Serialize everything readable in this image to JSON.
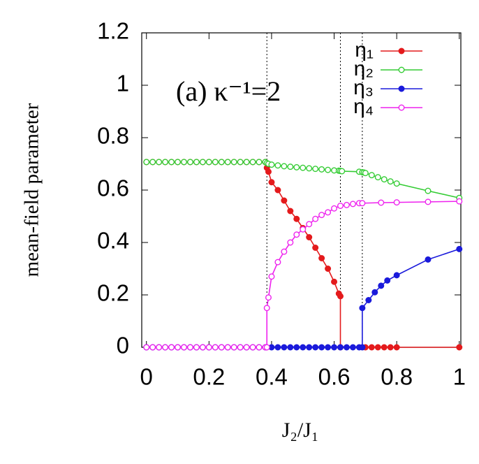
{
  "chart_data": {
    "type": "line",
    "annotation": "(a) κ⁻¹=2",
    "xlabel": "J₂/J₁",
    "ylabel": "mean-field parameter",
    "xlim": [
      -0.015,
      1.005
    ],
    "ylim": [
      0,
      1.2
    ],
    "xticks": [
      0,
      0.2,
      0.4,
      0.6,
      0.8,
      1
    ],
    "yticks": [
      0,
      0.2,
      0.4,
      0.6,
      0.8,
      1,
      1.2
    ],
    "vlines": [
      0.385,
      0.62,
      0.69
    ],
    "legend": "upper right",
    "series": [
      {
        "name": "η₁",
        "color": "#e41a1c",
        "marker": "filled",
        "x": [
          0,
          0.02,
          0.04,
          0.06,
          0.08,
          0.1,
          0.12,
          0.14,
          0.16,
          0.18,
          0.2,
          0.22,
          0.24,
          0.26,
          0.28,
          0.3,
          0.32,
          0.34,
          0.36,
          0.38,
          0.385,
          0.39,
          0.4,
          0.42,
          0.44,
          0.46,
          0.48,
          0.5,
          0.52,
          0.54,
          0.56,
          0.58,
          0.6,
          0.615,
          0.62,
          0.62,
          0.7,
          0.72,
          0.74,
          0.76,
          0.78,
          0.8,
          1.0
        ],
        "values": [
          0.707,
          0.707,
          0.707,
          0.707,
          0.707,
          0.707,
          0.707,
          0.707,
          0.707,
          0.707,
          0.707,
          0.707,
          0.707,
          0.707,
          0.707,
          0.707,
          0.707,
          0.707,
          0.707,
          0.707,
          0.685,
          0.67,
          0.63,
          0.6,
          0.56,
          0.52,
          0.49,
          0.455,
          0.42,
          0.38,
          0.34,
          0.3,
          0.25,
          0.205,
          0.195,
          0,
          0,
          0,
          0,
          0,
          0,
          0,
          0
        ]
      },
      {
        "name": "η₂",
        "color": "#33cc33",
        "marker": "open",
        "x": [
          0,
          0.02,
          0.04,
          0.06,
          0.08,
          0.1,
          0.12,
          0.14,
          0.16,
          0.18,
          0.2,
          0.22,
          0.24,
          0.26,
          0.28,
          0.3,
          0.32,
          0.34,
          0.36,
          0.38,
          0.385,
          0.39,
          0.4,
          0.42,
          0.44,
          0.46,
          0.48,
          0.5,
          0.52,
          0.54,
          0.56,
          0.58,
          0.6,
          0.615,
          0.62,
          0.625,
          0.68,
          0.69,
          0.695,
          0.7,
          0.72,
          0.74,
          0.76,
          0.78,
          0.8,
          0.9,
          1.0
        ],
        "values": [
          0.707,
          0.707,
          0.707,
          0.707,
          0.707,
          0.707,
          0.707,
          0.707,
          0.707,
          0.707,
          0.707,
          0.707,
          0.707,
          0.707,
          0.707,
          0.707,
          0.707,
          0.707,
          0.707,
          0.707,
          0.703,
          0.7,
          0.697,
          0.694,
          0.691,
          0.689,
          0.687,
          0.685,
          0.683,
          0.681,
          0.679,
          0.677,
          0.675,
          0.674,
          0.673,
          0.672,
          0.67,
          0.668,
          0.667,
          0.665,
          0.657,
          0.649,
          0.641,
          0.633,
          0.625,
          0.597,
          0.57
        ]
      },
      {
        "name": "η₃",
        "color": "#1a1adb",
        "marker": "filled",
        "x": [
          0,
          0.02,
          0.04,
          0.06,
          0.08,
          0.1,
          0.12,
          0.14,
          0.16,
          0.18,
          0.2,
          0.22,
          0.24,
          0.26,
          0.28,
          0.3,
          0.32,
          0.34,
          0.36,
          0.38,
          0.4,
          0.42,
          0.44,
          0.46,
          0.48,
          0.5,
          0.52,
          0.54,
          0.56,
          0.58,
          0.6,
          0.62,
          0.64,
          0.66,
          0.68,
          0.69,
          0.69,
          0.71,
          0.73,
          0.75,
          0.77,
          0.8,
          0.9,
          1.0
        ],
        "values": [
          0,
          0,
          0,
          0,
          0,
          0,
          0,
          0,
          0,
          0,
          0,
          0,
          0,
          0,
          0,
          0,
          0,
          0,
          0,
          0,
          0,
          0,
          0,
          0,
          0,
          0,
          0,
          0,
          0,
          0,
          0,
          0,
          0,
          0,
          0,
          0,
          0.15,
          0.18,
          0.21,
          0.235,
          0.255,
          0.275,
          0.335,
          0.375
        ]
      },
      {
        "name": "η₄",
        "color": "#ee22ee",
        "marker": "open",
        "x": [
          0,
          0.02,
          0.04,
          0.06,
          0.08,
          0.1,
          0.12,
          0.14,
          0.16,
          0.18,
          0.2,
          0.22,
          0.24,
          0.26,
          0.28,
          0.3,
          0.32,
          0.34,
          0.36,
          0.38,
          0.385,
          0.385,
          0.39,
          0.4,
          0.42,
          0.44,
          0.46,
          0.48,
          0.5,
          0.52,
          0.54,
          0.56,
          0.58,
          0.6,
          0.62,
          0.64,
          0.66,
          0.68,
          0.69,
          0.75,
          0.8,
          0.9,
          1.0
        ],
        "values": [
          0,
          0,
          0,
          0,
          0,
          0,
          0,
          0,
          0,
          0,
          0,
          0,
          0,
          0,
          0,
          0,
          0,
          0,
          0,
          0,
          0,
          0.15,
          0.19,
          0.27,
          0.325,
          0.365,
          0.4,
          0.43,
          0.45,
          0.47,
          0.49,
          0.505,
          0.515,
          0.53,
          0.54,
          0.543,
          0.547,
          0.55,
          0.55,
          0.552,
          0.553,
          0.555,
          0.557
        ]
      }
    ]
  }
}
